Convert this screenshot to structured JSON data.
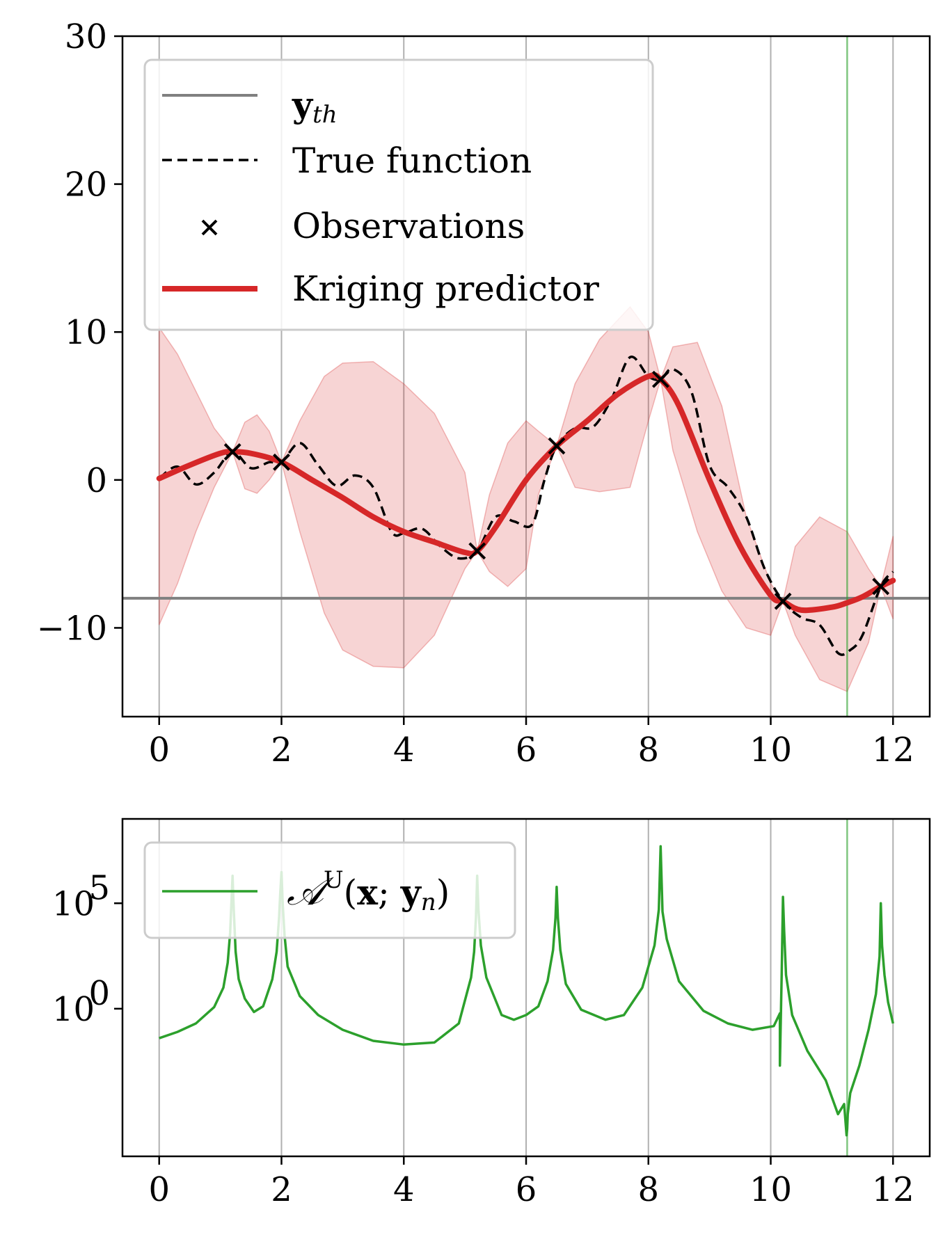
{
  "colors": {
    "kriging": "#d62728",
    "band": "#d62728",
    "true_function": "#000000",
    "threshold": "#808080",
    "acquisition": "#2ca02c",
    "grid": "#b0b0b0"
  },
  "chart_data": [
    {
      "type": "line",
      "xlim": [
        -0.6,
        12.6
      ],
      "ylim": [
        -16,
        30
      ],
      "xticks": [
        "0",
        "2",
        "4",
        "6",
        "8",
        "10",
        "12"
      ],
      "yticks": [
        "−10",
        "0",
        "10",
        "20",
        "30"
      ],
      "grid": "vertical",
      "legend_placement": "top-left",
      "threshold": {
        "label": "yth",
        "y": -8
      },
      "selected_x": 11.25,
      "legend": {
        "threshold": "yth",
        "true_function": "True function",
        "observations": "Observations",
        "kriging": "Kriging predictor"
      },
      "observations": {
        "x": [
          1.2,
          2.0,
          5.2,
          6.5,
          8.2,
          10.2,
          11.8
        ],
        "y": [
          1.9,
          1.2,
          -4.8,
          2.3,
          6.8,
          -8.2,
          -7.2
        ]
      },
      "true_function": {
        "x": [
          0,
          0.3,
          0.6,
          0.9,
          1.2,
          1.5,
          1.8,
          2.0,
          2.3,
          2.6,
          2.9,
          3.2,
          3.5,
          3.8,
          4.0,
          4.3,
          4.6,
          4.9,
          5.2,
          5.5,
          5.8,
          6.1,
          6.3,
          6.5,
          6.8,
          7.1,
          7.4,
          7.7,
          8.0,
          8.2,
          8.4,
          8.7,
          9.0,
          9.3,
          9.6,
          9.9,
          10.2,
          10.5,
          10.8,
          11.1,
          11.3,
          11.5,
          11.8,
          12.0
        ],
        "y": [
          0.1,
          0.9,
          -0.3,
          0.5,
          1.9,
          0.8,
          1.2,
          1.2,
          2.5,
          1.0,
          -0.4,
          0.3,
          -0.5,
          -3.5,
          -3.6,
          -3.3,
          -4.5,
          -5.3,
          -4.8,
          -2.5,
          -2.8,
          -3.0,
          0.0,
          2.3,
          3.5,
          3.6,
          5.5,
          8.3,
          7.0,
          6.8,
          7.5,
          6.0,
          1.0,
          -0.5,
          -2.5,
          -6.0,
          -8.2,
          -9.3,
          -9.8,
          -11.7,
          -11.5,
          -10.5,
          -7.2,
          -6.2
        ]
      },
      "kriging": {
        "x": [
          0,
          0.5,
          1.0,
          1.2,
          1.5,
          2.0,
          2.5,
          3.0,
          3.5,
          4.0,
          4.5,
          5.0,
          5.2,
          5.5,
          6.0,
          6.5,
          7.0,
          7.5,
          8.0,
          8.2,
          8.5,
          9.0,
          9.5,
          10.0,
          10.2,
          10.5,
          11.0,
          11.25,
          11.5,
          11.8,
          12.0
        ],
        "y": [
          0.1,
          1.0,
          1.8,
          1.9,
          1.8,
          1.2,
          0.0,
          -1.2,
          -2.5,
          -3.5,
          -4.2,
          -4.9,
          -4.8,
          -3.2,
          0.0,
          2.3,
          4.0,
          5.8,
          7.0,
          6.8,
          5.0,
          0.0,
          -4.5,
          -7.8,
          -8.2,
          -8.8,
          -8.6,
          -8.3,
          -7.9,
          -7.2,
          -6.8
        ]
      },
      "band": {
        "x": [
          0,
          0.3,
          0.6,
          0.9,
          1.2,
          1.4,
          1.6,
          1.8,
          2.0,
          2.3,
          2.7,
          3.0,
          3.5,
          4.0,
          4.5,
          5.0,
          5.2,
          5.4,
          5.7,
          6.0,
          6.2,
          6.5,
          6.8,
          7.2,
          7.7,
          8.0,
          8.2,
          8.4,
          8.8,
          9.2,
          9.6,
          10.0,
          10.2,
          10.4,
          10.8,
          11.25,
          11.6,
          11.8,
          12.0
        ],
        "upper": [
          10.3,
          8.5,
          6.0,
          3.5,
          1.9,
          3.9,
          4.4,
          3.3,
          1.2,
          4.0,
          7.0,
          7.9,
          8.0,
          6.5,
          4.5,
          0.5,
          -4.8,
          -1.0,
          2.5,
          4.0,
          3.3,
          2.3,
          6.5,
          9.5,
          11.7,
          10.0,
          6.8,
          9.0,
          9.3,
          5.0,
          -2.5,
          -7.0,
          -8.2,
          -4.5,
          -2.5,
          -3.5,
          -6.0,
          -7.2,
          -3.8
        ],
        "lower": [
          -9.8,
          -7.0,
          -3.5,
          -0.5,
          1.9,
          -0.6,
          -0.9,
          0.0,
          1.2,
          -3.5,
          -9.0,
          -11.5,
          -12.6,
          -12.7,
          -10.5,
          -6.0,
          -4.8,
          -6.2,
          -7.2,
          -6.0,
          -1.0,
          2.3,
          -0.5,
          -0.8,
          -0.5,
          4.0,
          6.8,
          2.0,
          -3.5,
          -7.5,
          -10.0,
          -10.5,
          -8.2,
          -10.5,
          -13.5,
          -14.3,
          -11.0,
          -7.2,
          -9.4
        ]
      }
    },
    {
      "type": "line",
      "yscale": "log",
      "xlim": [
        -0.6,
        12.6
      ],
      "ylim": [
        1e-07,
        1000000000.0
      ],
      "xticks": [
        "0",
        "2",
        "4",
        "6",
        "8",
        "10",
        "12"
      ],
      "yticks": [
        "10^0",
        "10^5"
      ],
      "grid": "vertical",
      "legend_placement": "top-left",
      "selected_x": 11.25,
      "legend": {
        "acquisition": "A^U(x; yn)"
      },
      "acquisition": {
        "x": [
          0,
          0.3,
          0.6,
          0.9,
          1.05,
          1.12,
          1.16,
          1.18,
          1.2,
          1.22,
          1.25,
          1.3,
          1.4,
          1.55,
          1.7,
          1.85,
          1.92,
          1.96,
          1.98,
          2.0,
          2.02,
          2.05,
          2.1,
          2.3,
          2.6,
          3.0,
          3.5,
          4.0,
          4.5,
          4.9,
          5.1,
          5.15,
          5.18,
          5.2,
          5.22,
          5.26,
          5.35,
          5.6,
          5.8,
          6.0,
          6.2,
          6.35,
          6.44,
          6.48,
          6.5,
          6.52,
          6.56,
          6.65,
          6.9,
          7.3,
          7.6,
          7.9,
          8.1,
          8.17,
          8.2,
          8.23,
          8.3,
          8.5,
          8.9,
          9.3,
          9.7,
          10.05,
          10.15,
          10.15,
          10.18,
          10.2,
          10.22,
          10.25,
          10.35,
          10.6,
          10.9,
          11.1,
          11.2,
          11.24,
          11.25,
          11.26,
          11.3,
          11.45,
          11.6,
          11.72,
          11.78,
          11.8,
          11.82,
          11.86,
          11.92,
          12.0
        ],
        "y": [
          0.04,
          0.08,
          0.2,
          1.2,
          10,
          150,
          4000,
          80000,
          2000000,
          50000,
          500,
          25,
          3,
          0.7,
          1.3,
          25,
          500,
          20000,
          300000,
          3000000,
          100000,
          3000,
          100,
          4,
          0.5,
          0.1,
          0.03,
          0.02,
          0.025,
          0.2,
          30,
          500,
          20000,
          2000000,
          50000,
          1000,
          30,
          0.5,
          0.3,
          0.5,
          1.3,
          20,
          600,
          20000,
          600000,
          20000,
          600,
          15,
          0.9,
          0.3,
          0.5,
          10,
          1000,
          50000,
          50000000,
          40000,
          2000,
          20,
          0.8,
          0.2,
          0.1,
          0.15,
          0.6,
          0.002,
          50,
          200000,
          5000,
          40,
          0.5,
          0.01,
          0.0004,
          1e-05,
          3e-05,
          1e-06,
          2e-06,
          1e-05,
          0.0001,
          0.002,
          0.1,
          5,
          300,
          100000,
          1000,
          40,
          2,
          0.2
        ]
      }
    }
  ]
}
